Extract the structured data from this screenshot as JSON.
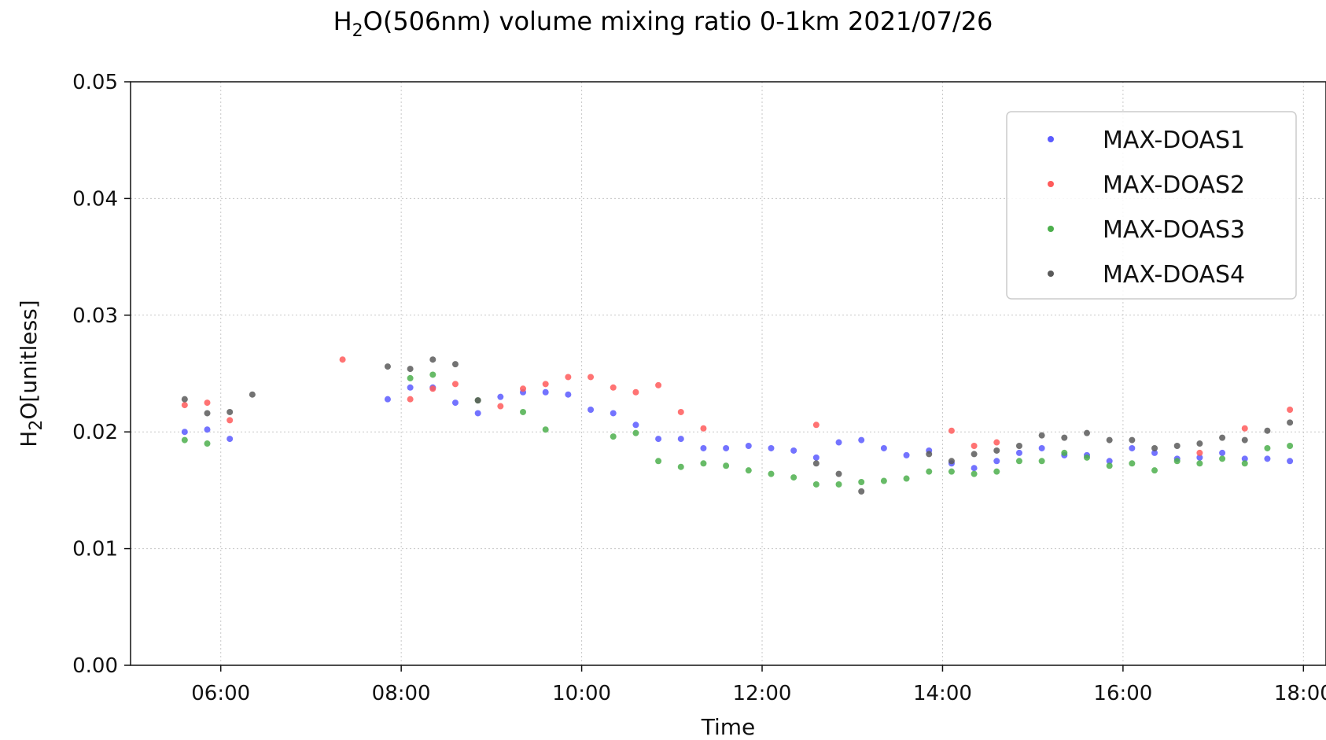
{
  "chart_data": {
    "type": "scatter",
    "title_parts": [
      "H",
      "2",
      "O(506nm) volume mixing ratio 0-1km 2021/07/26"
    ],
    "xlabel": "Time",
    "ylabel_parts": [
      "H",
      "2",
      "O[unitless]"
    ],
    "xlim": [
      "05:00",
      "18:15"
    ],
    "ylim": [
      0,
      0.05
    ],
    "xticks": [
      "06:00",
      "08:00",
      "10:00",
      "12:00",
      "14:00",
      "16:00",
      "18:00"
    ],
    "yticks": [
      "0.00",
      "0.01",
      "0.02",
      "0.03",
      "0.04",
      "0.05"
    ],
    "grid": true,
    "legend_position": "top-right",
    "series": [
      {
        "name": "MAX-DOAS1",
        "color": "#5b5bff",
        "points": [
          [
            "05:36",
            0.02
          ],
          [
            "05:51",
            0.0202
          ],
          [
            "06:06",
            0.0194
          ],
          [
            "07:51",
            0.0228
          ],
          [
            "08:06",
            0.0238
          ],
          [
            "08:21",
            0.0238
          ],
          [
            "08:36",
            0.0225
          ],
          [
            "08:51",
            0.0216
          ],
          [
            "09:06",
            0.023
          ],
          [
            "09:21",
            0.0234
          ],
          [
            "09:36",
            0.0234
          ],
          [
            "09:51",
            0.0232
          ],
          [
            "10:06",
            0.0219
          ],
          [
            "10:21",
            0.0216
          ],
          [
            "10:36",
            0.0206
          ],
          [
            "10:51",
            0.0194
          ],
          [
            "11:06",
            0.0194
          ],
          [
            "11:21",
            0.0186
          ],
          [
            "11:36",
            0.0186
          ],
          [
            "11:51",
            0.0188
          ],
          [
            "12:06",
            0.0186
          ],
          [
            "12:21",
            0.0184
          ],
          [
            "12:36",
            0.0178
          ],
          [
            "12:51",
            0.0191
          ],
          [
            "13:06",
            0.0193
          ],
          [
            "13:21",
            0.0186
          ],
          [
            "13:36",
            0.018
          ],
          [
            "13:51",
            0.0184
          ],
          [
            "14:06",
            0.0173
          ],
          [
            "14:21",
            0.0169
          ],
          [
            "14:36",
            0.0175
          ],
          [
            "14:51",
            0.0182
          ],
          [
            "15:06",
            0.0186
          ],
          [
            "15:21",
            0.018
          ],
          [
            "15:36",
            0.018
          ],
          [
            "15:51",
            0.0175
          ],
          [
            "16:06",
            0.0186
          ],
          [
            "16:21",
            0.0182
          ],
          [
            "16:36",
            0.0177
          ],
          [
            "16:51",
            0.0178
          ],
          [
            "17:06",
            0.0182
          ],
          [
            "17:21",
            0.0177
          ],
          [
            "17:36",
            0.0177
          ],
          [
            "17:51",
            0.0175
          ]
        ]
      },
      {
        "name": "MAX-DOAS2",
        "color": "#ff5b5b",
        "points": [
          [
            "05:36",
            0.0223
          ],
          [
            "05:51",
            0.0225
          ],
          [
            "06:06",
            0.021
          ],
          [
            "07:21",
            0.0262
          ],
          [
            "08:06",
            0.0228
          ],
          [
            "08:21",
            0.0237
          ],
          [
            "08:36",
            0.0241
          ],
          [
            "09:06",
            0.0222
          ],
          [
            "09:21",
            0.0237
          ],
          [
            "09:36",
            0.0241
          ],
          [
            "09:51",
            0.0247
          ],
          [
            "10:06",
            0.0247
          ],
          [
            "10:21",
            0.0238
          ],
          [
            "10:36",
            0.0234
          ],
          [
            "10:51",
            0.024
          ],
          [
            "11:06",
            0.0217
          ],
          [
            "11:21",
            0.0203
          ],
          [
            "12:36",
            0.0206
          ],
          [
            "14:06",
            0.0201
          ],
          [
            "14:21",
            0.0188
          ],
          [
            "14:36",
            0.0191
          ],
          [
            "16:51",
            0.0182
          ],
          [
            "17:21",
            0.0203
          ],
          [
            "17:51",
            0.0219
          ]
        ]
      },
      {
        "name": "MAX-DOAS3",
        "color": "#4caf4c",
        "points": [
          [
            "05:36",
            0.0193
          ],
          [
            "05:51",
            0.019
          ],
          [
            "08:06",
            0.0246
          ],
          [
            "08:21",
            0.0249
          ],
          [
            "08:51",
            0.0227
          ],
          [
            "09:21",
            0.0217
          ],
          [
            "09:36",
            0.0202
          ],
          [
            "10:21",
            0.0196
          ],
          [
            "10:36",
            0.0199
          ],
          [
            "10:51",
            0.0175
          ],
          [
            "11:06",
            0.017
          ],
          [
            "11:21",
            0.0173
          ],
          [
            "11:36",
            0.0171
          ],
          [
            "11:51",
            0.0167
          ],
          [
            "12:06",
            0.0164
          ],
          [
            "12:21",
            0.0161
          ],
          [
            "12:36",
            0.0155
          ],
          [
            "12:51",
            0.0155
          ],
          [
            "13:06",
            0.0157
          ],
          [
            "13:21",
            0.0158
          ],
          [
            "13:36",
            0.016
          ],
          [
            "13:51",
            0.0166
          ],
          [
            "14:06",
            0.0166
          ],
          [
            "14:21",
            0.0164
          ],
          [
            "14:36",
            0.0166
          ],
          [
            "14:51",
            0.0175
          ],
          [
            "15:06",
            0.0175
          ],
          [
            "15:21",
            0.0182
          ],
          [
            "15:36",
            0.0178
          ],
          [
            "15:51",
            0.0171
          ],
          [
            "16:06",
            0.0173
          ],
          [
            "16:21",
            0.0167
          ],
          [
            "16:36",
            0.0175
          ],
          [
            "16:51",
            0.0173
          ],
          [
            "17:06",
            0.0177
          ],
          [
            "17:21",
            0.0173
          ],
          [
            "17:36",
            0.0186
          ],
          [
            "17:51",
            0.0188
          ]
        ]
      },
      {
        "name": "MAX-DOAS4",
        "color": "#5a5a5a",
        "points": [
          [
            "05:36",
            0.0228
          ],
          [
            "05:51",
            0.0216
          ],
          [
            "06:06",
            0.0217
          ],
          [
            "06:21",
            0.0232
          ],
          [
            "07:51",
            0.0256
          ],
          [
            "08:06",
            0.0254
          ],
          [
            "08:21",
            0.0262
          ],
          [
            "08:36",
            0.0258
          ],
          [
            "08:51",
            0.0227
          ],
          [
            "12:36",
            0.0173
          ],
          [
            "12:51",
            0.0164
          ],
          [
            "13:06",
            0.0149
          ],
          [
            "13:51",
            0.0181
          ],
          [
            "14:06",
            0.0175
          ],
          [
            "14:21",
            0.0181
          ],
          [
            "14:36",
            0.0184
          ],
          [
            "14:51",
            0.0188
          ],
          [
            "15:06",
            0.0197
          ],
          [
            "15:21",
            0.0195
          ],
          [
            "15:36",
            0.0199
          ],
          [
            "15:51",
            0.0193
          ],
          [
            "16:06",
            0.0193
          ],
          [
            "16:21",
            0.0186
          ],
          [
            "16:36",
            0.0188
          ],
          [
            "16:51",
            0.019
          ],
          [
            "17:06",
            0.0195
          ],
          [
            "17:21",
            0.0193
          ],
          [
            "17:36",
            0.0201
          ],
          [
            "17:51",
            0.0208
          ]
        ]
      }
    ]
  }
}
